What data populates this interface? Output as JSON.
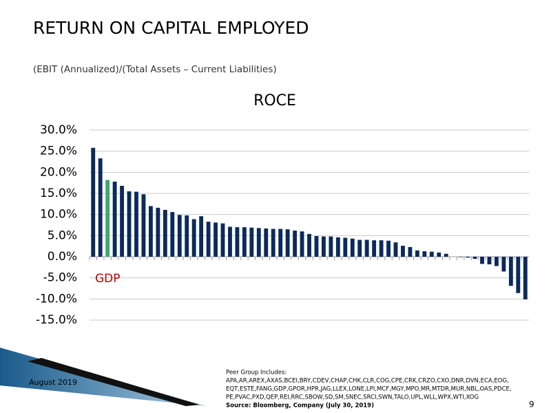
{
  "header": {
    "title": "RETURN ON CAPITAL EMPLOYED",
    "subtitle": "(EBIT (Annualized)/(Total Assets – Current Liabilities)"
  },
  "chart_data": {
    "type": "bar",
    "title": "ROCE",
    "categories": [
      null,
      null,
      null,
      null,
      null,
      null,
      null,
      null,
      null,
      null,
      null,
      null,
      null,
      null,
      null,
      null,
      null,
      null,
      null,
      null,
      null,
      null,
      null,
      null,
      null,
      null,
      null,
      null,
      null,
      null,
      null,
      null,
      null,
      null,
      null,
      null,
      null,
      null,
      null,
      null,
      null,
      null,
      null,
      null,
      null,
      null,
      null,
      null,
      null,
      null,
      null,
      null,
      null,
      null,
      null,
      null,
      null,
      null,
      null,
      null,
      null
    ],
    "values": [
      25.8,
      23.3,
      18.2,
      17.8,
      16.8,
      15.5,
      15.4,
      14.8,
      12.0,
      11.6,
      11.1,
      10.6,
      9.9,
      9.8,
      8.9,
      9.6,
      8.3,
      8.1,
      7.9,
      7.1,
      7.0,
      7.0,
      6.9,
      6.8,
      6.7,
      6.6,
      6.6,
      6.5,
      6.2,
      6.0,
      5.4,
      4.9,
      4.8,
      4.8,
      4.6,
      4.5,
      4.3,
      4.0,
      4.0,
      3.9,
      3.9,
      3.8,
      3.4,
      2.6,
      2.3,
      1.5,
      1.3,
      1.2,
      1.0,
      0.7,
      0.0,
      -0.1,
      -0.2,
      -0.5,
      -1.7,
      -1.8,
      -2.2,
      -3.5,
      -6.9,
      -8.6,
      -10.1
    ],
    "colors": [
      "#0c2a5b",
      "#0c2a5b",
      "#3daa6b",
      "#0c2a5b",
      "#0c2a5b",
      "#0c2a5b",
      "#0c2a5b",
      "#0c2a5b",
      "#0c2a5b",
      "#0c2a5b",
      "#0c2a5b",
      "#0c2a5b",
      "#0c2a5b",
      "#0c2a5b",
      "#0c2a5b",
      "#0c2a5b",
      "#0c2a5b",
      "#0c2a5b",
      "#0c2a5b",
      "#0c2a5b",
      "#0c2a5b",
      "#0c2a5b",
      "#0c2a5b",
      "#0c2a5b",
      "#0c2a5b",
      "#0c2a5b",
      "#0c2a5b",
      "#0c2a5b",
      "#0c2a5b",
      "#0c2a5b",
      "#0c2a5b",
      "#0c2a5b",
      "#0c2a5b",
      "#0c2a5b",
      "#0c2a5b",
      "#0c2a5b",
      "#0c2a5b",
      "#0c2a5b",
      "#0c2a5b",
      "#0c2a5b",
      "#0c2a5b",
      "#0c2a5b",
      "#0c2a5b",
      "#0c2a5b",
      "#0c2a5b",
      "#0c2a5b",
      "#0c2a5b",
      "#0c2a5b",
      "#0c2a5b",
      "#0c2a5b",
      "#0c2a5b",
      "#0c2a5b",
      "#0c2a5b",
      "#0c2a5b",
      "#0c2a5b",
      "#0c2a5b",
      "#0c2a5b",
      "#0c2a5b",
      "#0c2a5b",
      "#0c2a5b",
      "#0c2a5b"
    ],
    "ylim": [
      -15,
      30
    ],
    "yticks": [
      {
        "value": -15,
        "label": "-15.0%"
      },
      {
        "value": -10,
        "label": "-10.0%"
      },
      {
        "value": -5,
        "label": "-5.0%"
      },
      {
        "value": 0,
        "label": "0.0%"
      },
      {
        "value": 5,
        "label": "5.0%"
      },
      {
        "value": 10,
        "label": "10.0%"
      },
      {
        "value": 15,
        "label": "15.0%"
      },
      {
        "value": 20,
        "label": "20.0%"
      },
      {
        "value": 25,
        "label": "25.0%"
      },
      {
        "value": 30,
        "label": "30.0%"
      }
    ],
    "grid": true,
    "annotation": {
      "text": "GDP",
      "color": "#c00000"
    }
  },
  "footer": {
    "date": "August 2019",
    "peer_group": [
      "Peer Group Includes:",
      "APA,AR,AREX,AXAS,BCEI,BRY,CDEV,CHAP,CHK,CLR,COG,CPE,CRK,CRZO,CXO,DNR,DVN,ECA,EOG,",
      "EQT,ESTE,FANG,GDP,GPOR,HPR,JAG,LLEX,LONE,LPI,MCF,MGY,MPO,MR,MTDR,MUR,NBL,OAS,PDCE,",
      "PE,PVAC,PXD,QEP,REI,RRC,SBOW,SD,SM,SNEC,SRCI,SWN,TALO,UPL,WLL,WPX,WTI,XOG"
    ],
    "source": "Source: Bloomberg, Company  (July 30, 2019)",
    "page": "9"
  }
}
